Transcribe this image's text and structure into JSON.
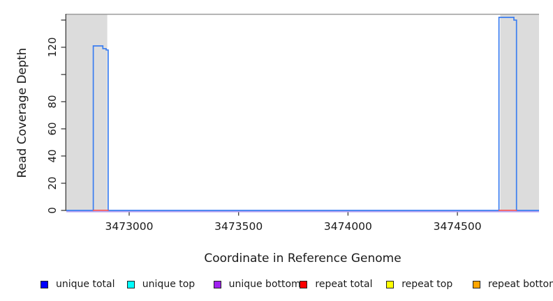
{
  "chart_data": {
    "type": "line",
    "title": "",
    "xlabel": "Coordinate in Reference Genome",
    "ylabel": "Read Coverage Depth",
    "xlim": [
      3472713,
      3474873
    ],
    "ylim": [
      0,
      144
    ],
    "x_ticks": [
      3473000,
      3473500,
      3474000,
      3474500
    ],
    "x_tick_labels": [
      "3473000",
      "3473500",
      "3474000",
      "3474500"
    ],
    "y_ticks": [
      0,
      20,
      40,
      60,
      80,
      100,
      120,
      140
    ],
    "y_tick_labels": [
      "0",
      "20",
      "40",
      "60",
      "80",
      "",
      "120",
      ""
    ],
    "grid": false,
    "shaded_regions": [
      [
        3472713,
        3472900
      ],
      [
        3474696,
        3474873
      ]
    ],
    "series": [
      {
        "name": "unique total",
        "role": "coverage",
        "color": "#3A7DF0",
        "points": [
          [
            3472713,
            0
          ],
          [
            3472836,
            0
          ],
          [
            3472836,
            121
          ],
          [
            3472880,
            121
          ],
          [
            3472880,
            119
          ],
          [
            3472895,
            119
          ],
          [
            3472895,
            118
          ],
          [
            3472904,
            118
          ],
          [
            3472904,
            0
          ],
          [
            3474690,
            0
          ],
          [
            3474690,
            142
          ],
          [
            3474758,
            142
          ],
          [
            3474758,
            140
          ],
          [
            3474770,
            140
          ],
          [
            3474770,
            0
          ],
          [
            3474873,
            0
          ]
        ]
      },
      {
        "name": "unique bottom",
        "role": "baseline",
        "color": "#B4A0F0",
        "value": 0
      },
      {
        "name": "repeat total",
        "role": "repeat",
        "color": "#F85050",
        "value": 0.1,
        "segments": [
          [
            3472834,
            3472906
          ],
          [
            3474688,
            3474772
          ]
        ]
      }
    ],
    "colors": {
      "shading": "#DCDCDC",
      "frame": "#999999",
      "axis": "#3C3C3C",
      "text": "#1A1A1A"
    },
    "legend_position": "bottom"
  },
  "legend": {
    "swatch_border": "#222222",
    "items": [
      {
        "label": "unique total",
        "color": "#0000FF"
      },
      {
        "label": "unique top",
        "color": "#00FFFF"
      },
      {
        "label": "unique bottom",
        "color": "#A020F0"
      },
      {
        "label": "repeat total",
        "color": "#FF0000"
      },
      {
        "label": "repeat top",
        "color": "#FFFF00"
      },
      {
        "label": "repeat bottom",
        "color": "#FFA500"
      }
    ]
  }
}
